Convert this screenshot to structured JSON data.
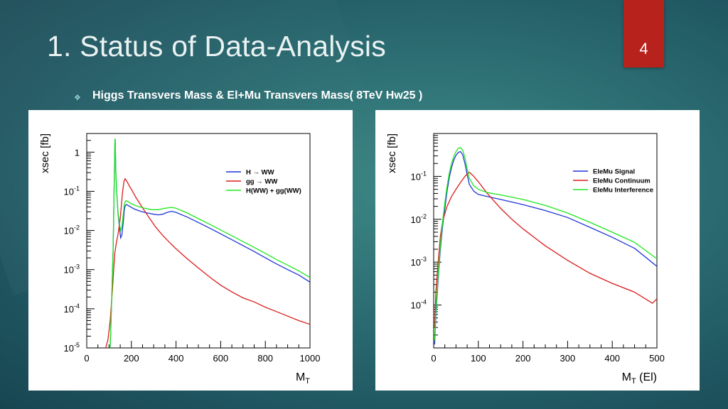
{
  "slide": {
    "title": "1. Status of Data-Analysis",
    "page_number": "4",
    "bullet": "Higgs Transvers Mass & El+Mu Transvers Mass( 8TeV Hw25 )",
    "bullet_icon": "diamond-bullet-icon",
    "colors": {
      "badge": "#b8221c",
      "title": "#eaf2f2"
    }
  },
  "chart_data": [
    {
      "type": "line",
      "title": "",
      "xlabel_base": "M",
      "xlabel_sub": "T",
      "xlabel_suffix": "",
      "ylabel": "xsec [fb]",
      "xlim": [
        0,
        1000
      ],
      "ylim": [
        1e-05,
        3
      ],
      "yscale": "log",
      "grid": false,
      "legend_position": "top-right",
      "xticks": [
        0,
        200,
        400,
        600,
        800,
        1000
      ],
      "xtick_labels": [
        "0",
        "200",
        "400",
        "600",
        "800",
        "1000"
      ],
      "yticks": [
        1,
        0.1,
        0.01,
        0.001,
        0.0001,
        1e-05
      ],
      "ytick_labels": [
        {
          "base": "1",
          "exp": ""
        },
        {
          "base": "10",
          "exp": "-1"
        },
        {
          "base": "10",
          "exp": "-2"
        },
        {
          "base": "10",
          "exp": "-3"
        },
        {
          "base": "10",
          "exp": "-4"
        },
        {
          "base": "10",
          "exp": "-5"
        }
      ],
      "series": [
        {
          "name": "H → WW",
          "color": "#1f35d6",
          "points": [
            [
              105,
              1e-05
            ],
            [
              112,
              0.0002
            ],
            [
              118,
              0.003
            ],
            [
              121,
              0.03
            ],
            [
              124,
              0.3
            ],
            [
              126,
              1.7
            ],
            [
              127,
              2.2
            ],
            [
              128,
              1.7
            ],
            [
              130,
              0.35
            ],
            [
              134,
              0.1
            ],
            [
              140,
              0.028
            ],
            [
              147,
              0.011
            ],
            [
              152,
              0.0065
            ],
            [
              157,
              0.0075
            ],
            [
              163,
              0.015
            ],
            [
              168,
              0.032
            ],
            [
              172,
              0.043
            ],
            [
              178,
              0.046
            ],
            [
              190,
              0.042
            ],
            [
              210,
              0.036
            ],
            [
              240,
              0.031
            ],
            [
              270,
              0.028
            ],
            [
              300,
              0.026
            ],
            [
              320,
              0.025
            ],
            [
              340,
              0.026
            ],
            [
              360,
              0.029
            ],
            [
              380,
              0.031
            ],
            [
              400,
              0.029
            ],
            [
              450,
              0.022
            ],
            [
              500,
              0.016
            ],
            [
              550,
              0.0115
            ],
            [
              600,
              0.0082
            ],
            [
              650,
              0.0058
            ],
            [
              700,
              0.0041
            ],
            [
              750,
              0.0029
            ],
            [
              800,
              0.002
            ],
            [
              850,
              0.0014
            ],
            [
              900,
              0.001
            ],
            [
              950,
              0.00073
            ],
            [
              1000,
              0.00048
            ]
          ]
        },
        {
          "name": "gg → WW",
          "color": "#dd1c1c",
          "points": [
            [
              85,
              1e-05
            ],
            [
              95,
              1.6e-05
            ],
            [
              105,
              5e-05
            ],
            [
              115,
              0.0003
            ],
            [
              125,
              0.0025
            ],
            [
              133,
              0.005
            ],
            [
              140,
              0.008
            ],
            [
              150,
              0.02
            ],
            [
              160,
              0.09
            ],
            [
              167,
              0.18
            ],
            [
              172,
              0.21
            ],
            [
              180,
              0.18
            ],
            [
              190,
              0.14
            ],
            [
              205,
              0.1
            ],
            [
              220,
              0.07
            ],
            [
              250,
              0.038
            ],
            [
              280,
              0.021
            ],
            [
              310,
              0.012
            ],
            [
              340,
              0.0075
            ],
            [
              370,
              0.005
            ],
            [
              400,
              0.0034
            ],
            [
              450,
              0.0019
            ],
            [
              500,
              0.0011
            ],
            [
              550,
              0.00065
            ],
            [
              600,
              0.0004
            ],
            [
              650,
              0.00027
            ],
            [
              700,
              0.00019
            ],
            [
              750,
              0.00015
            ],
            [
              800,
              0.00011
            ],
            [
              850,
              8.5e-05
            ],
            [
              900,
              6.5e-05
            ],
            [
              950,
              5e-05
            ],
            [
              1000,
              4e-05
            ]
          ]
        },
        {
          "name": "H(WW) + gg(WW)",
          "color": "#1ee81e",
          "points": [
            [
              105,
              1e-05
            ],
            [
              112,
              0.0002
            ],
            [
              118,
              0.003
            ],
            [
              121,
              0.03
            ],
            [
              124,
              0.3
            ],
            [
              126,
              1.7
            ],
            [
              127,
              2.2
            ],
            [
              128,
              1.7
            ],
            [
              130,
              0.35
            ],
            [
              134,
              0.1
            ],
            [
              140,
              0.03
            ],
            [
              147,
              0.014
            ],
            [
              152,
              0.01
            ],
            [
              157,
              0.012
            ],
            [
              163,
              0.024
            ],
            [
              168,
              0.046
            ],
            [
              174,
              0.057
            ],
            [
              182,
              0.056
            ],
            [
              200,
              0.048
            ],
            [
              230,
              0.041
            ],
            [
              260,
              0.037
            ],
            [
              290,
              0.034
            ],
            [
              320,
              0.034
            ],
            [
              350,
              0.037
            ],
            [
              380,
              0.039
            ],
            [
              400,
              0.037
            ],
            [
              450,
              0.028
            ],
            [
              500,
              0.02
            ],
            [
              550,
              0.0145
            ],
            [
              600,
              0.0103
            ],
            [
              650,
              0.0073
            ],
            [
              700,
              0.0052
            ],
            [
              750,
              0.0037
            ],
            [
              800,
              0.0026
            ],
            [
              850,
              0.0018
            ],
            [
              900,
              0.0013
            ],
            [
              950,
              0.00093
            ],
            [
              1000,
              0.00063
            ]
          ]
        }
      ]
    },
    {
      "type": "line",
      "title": "",
      "xlabel_base": "M",
      "xlabel_sub": "T",
      "xlabel_suffix": " (El)",
      "ylabel": "xsec [fb]",
      "xlim": [
        0,
        500
      ],
      "ylim": [
        1e-05,
        1
      ],
      "yscale": "log",
      "grid": false,
      "legend_position": "top-right",
      "xticks": [
        0,
        100,
        200,
        300,
        400,
        500
      ],
      "xtick_labels": [
        "0",
        "100",
        "200",
        "300",
        "400",
        "500"
      ],
      "yticks": [
        0.1,
        0.01,
        0.001,
        0.0001
      ],
      "ytick_labels": [
        {
          "base": "10",
          "exp": "-1"
        },
        {
          "base": "10",
          "exp": "-2"
        },
        {
          "base": "10",
          "exp": "-3"
        },
        {
          "base": "10",
          "exp": "-4"
        }
      ],
      "series": [
        {
          "name": "EleMu Signal",
          "color": "#1f35d6",
          "points": [
            [
              2,
              1.2e-05
            ],
            [
              5,
              6e-05
            ],
            [
              10,
              0.0004
            ],
            [
              15,
              0.002
            ],
            [
              20,
              0.007
            ],
            [
              25,
              0.018
            ],
            [
              30,
              0.045
            ],
            [
              35,
              0.095
            ],
            [
              40,
              0.16
            ],
            [
              45,
              0.24
            ],
            [
              50,
              0.31
            ],
            [
              55,
              0.36
            ],
            [
              60,
              0.38
            ],
            [
              65,
              0.32
            ],
            [
              70,
              0.2
            ],
            [
              75,
              0.11
            ],
            [
              80,
              0.065
            ],
            [
              90,
              0.045
            ],
            [
              100,
              0.038
            ],
            [
              120,
              0.034
            ],
            [
              150,
              0.029
            ],
            [
              200,
              0.022
            ],
            [
              250,
              0.016
            ],
            [
              300,
              0.011
            ],
            [
              350,
              0.0065
            ],
            [
              400,
              0.0038
            ],
            [
              450,
              0.0021
            ],
            [
              500,
              0.0008
            ]
          ]
        },
        {
          "name": "EleMu Continuum",
          "color": "#dd1c1c",
          "points": [
            [
              2,
              3e-05
            ],
            [
              5,
              0.0002
            ],
            [
              10,
              0.001
            ],
            [
              15,
              0.004
            ],
            [
              20,
              0.009
            ],
            [
              30,
              0.02
            ],
            [
              40,
              0.034
            ],
            [
              50,
              0.05
            ],
            [
              60,
              0.072
            ],
            [
              70,
              0.1
            ],
            [
              78,
              0.125
            ],
            [
              82,
              0.12
            ],
            [
              90,
              0.1
            ],
            [
              100,
              0.075
            ],
            [
              120,
              0.04
            ],
            [
              150,
              0.018
            ],
            [
              175,
              0.01
            ],
            [
              200,
              0.006
            ],
            [
              250,
              0.0024
            ],
            [
              300,
              0.0011
            ],
            [
              350,
              0.00055
            ],
            [
              400,
              0.00032
            ],
            [
              450,
              0.0002
            ],
            [
              490,
              0.00011
            ],
            [
              500,
              0.00014
            ]
          ]
        },
        {
          "name": "EleMu Interference",
          "color": "#1ee81e",
          "points": [
            [
              2,
              1.5e-05
            ],
            [
              5,
              8e-05
            ],
            [
              10,
              0.0005
            ],
            [
              15,
              0.0025
            ],
            [
              20,
              0.009
            ],
            [
              25,
              0.024
            ],
            [
              30,
              0.058
            ],
            [
              35,
              0.12
            ],
            [
              40,
              0.2
            ],
            [
              45,
              0.29
            ],
            [
              50,
              0.38
            ],
            [
              55,
              0.45
            ],
            [
              60,
              0.47
            ],
            [
              65,
              0.41
            ],
            [
              70,
              0.27
            ],
            [
              75,
              0.15
            ],
            [
              80,
              0.09
            ],
            [
              90,
              0.06
            ],
            [
              100,
              0.05
            ],
            [
              120,
              0.042
            ],
            [
              150,
              0.037
            ],
            [
              200,
              0.029
            ],
            [
              250,
              0.021
            ],
            [
              300,
              0.014
            ],
            [
              350,
              0.0085
            ],
            [
              400,
              0.005
            ],
            [
              450,
              0.0029
            ],
            [
              500,
              0.0012
            ]
          ]
        }
      ]
    }
  ]
}
